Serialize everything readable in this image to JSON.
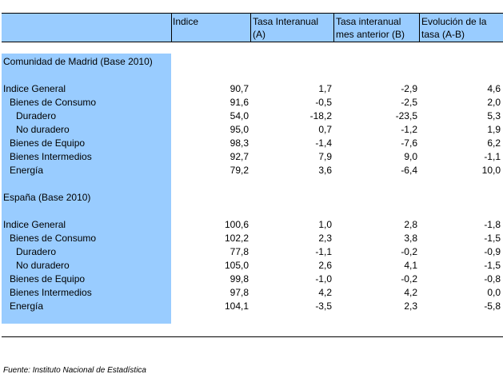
{
  "header": {
    "col1": "Indice",
    "col2_line1": "Tasa Interanual",
    "col2_line2": "(A)",
    "col3_line1": "Tasa interanual",
    "col3_line2": "mes anterior (B)",
    "col4_line1": "Evolución de la",
    "col4_line2": "tasa (A-B)"
  },
  "madrid": {
    "title": "Comunidad de Madrid (Base 2010)",
    "rows": [
      {
        "label": "Indice General",
        "indice": "90,7",
        "tasa": "1,7",
        "tasa_anterior": "-2,9",
        "evolucion": "4,6"
      },
      {
        "label": "Bienes de Consumo",
        "indice": "91,6",
        "tasa": "-0,5",
        "tasa_anterior": "-2,5",
        "evolucion": "2,0"
      },
      {
        "label": "Duradero",
        "indice": "54,0",
        "tasa": "-18,2",
        "tasa_anterior": "-23,5",
        "evolucion": "5,3"
      },
      {
        "label": "No duradero",
        "indice": "95,0",
        "tasa": "0,7",
        "tasa_anterior": "-1,2",
        "evolucion": "1,9"
      },
      {
        "label": "Bienes de Equipo",
        "indice": "98,3",
        "tasa": "-1,4",
        "tasa_anterior": "-7,6",
        "evolucion": "6,2"
      },
      {
        "label": "Bienes Intermedios",
        "indice": "92,7",
        "tasa": "7,9",
        "tasa_anterior": "9,0",
        "evolucion": "-1,1"
      },
      {
        "label": "Energía",
        "indice": "79,2",
        "tasa": "3,6",
        "tasa_anterior": "-6,4",
        "evolucion": "10,0"
      }
    ]
  },
  "espana": {
    "title": "España (Base 2010)",
    "rows": [
      {
        "label": "Indice General",
        "indice": "100,6",
        "tasa": "1,0",
        "tasa_anterior": "2,8",
        "evolucion": "-1,8"
      },
      {
        "label": "Bienes de Consumo",
        "indice": "102,2",
        "tasa": "2,3",
        "tasa_anterior": "3,8",
        "evolucion": "-1,5"
      },
      {
        "label": "Duradero",
        "indice": "77,8",
        "tasa": "-1,1",
        "tasa_anterior": "-0,2",
        "evolucion": "-0,9"
      },
      {
        "label": "No duradero",
        "indice": "105,0",
        "tasa": "2,6",
        "tasa_anterior": "4,1",
        "evolucion": "-1,5"
      },
      {
        "label": "Bienes de Equipo",
        "indice": "99,8",
        "tasa": "-1,0",
        "tasa_anterior": "-0,2",
        "evolucion": "-0,8"
      },
      {
        "label": "Bienes Intermedios",
        "indice": "97,8",
        "tasa": "4,2",
        "tasa_anterior": "4,2",
        "evolucion": "0,0"
      },
      {
        "label": "Energía",
        "indice": "104,1",
        "tasa": "-3,5",
        "tasa_anterior": "2,3",
        "evolucion": "-5,8"
      }
    ]
  },
  "source": "Fuente: Instituto Nacional de Estadística",
  "colors": {
    "fill": "#99ccff",
    "line": "#000000"
  }
}
